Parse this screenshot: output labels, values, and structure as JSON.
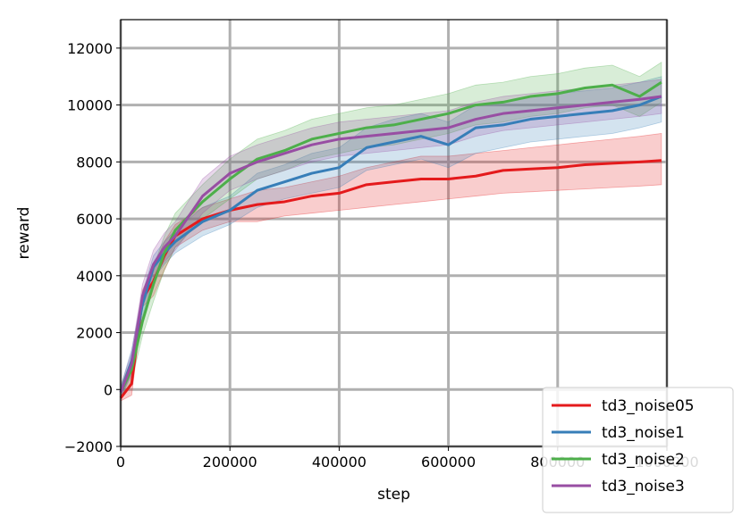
{
  "chart_data": {
    "type": "line",
    "title": "",
    "xlabel": "step",
    "ylabel": "reward",
    "xlim": [
      0,
      1000000
    ],
    "ylim": [
      -2000,
      13000
    ],
    "xticks": [
      0,
      200000,
      400000,
      600000,
      800000,
      1000000
    ],
    "xtick_labels": [
      "0",
      "200000",
      "400000",
      "600000",
      "800000",
      "1000000"
    ],
    "yticks": [
      -2000,
      0,
      2000,
      4000,
      6000,
      8000,
      10000,
      12000
    ],
    "ytick_labels": [
      "−2000",
      "0",
      "2000",
      "4000",
      "6000",
      "8000",
      "10000",
      "12000"
    ],
    "grid": true,
    "legend_position": "bottom-right",
    "x": [
      0,
      20000,
      40000,
      60000,
      80000,
      100000,
      150000,
      200000,
      250000,
      300000,
      350000,
      400000,
      450000,
      500000,
      550000,
      600000,
      650000,
      700000,
      750000,
      800000,
      850000,
      900000,
      950000,
      990000
    ],
    "series": [
      {
        "name": "td3_noise05",
        "color": "#e41a1c",
        "values": [
          -300,
          200,
          3200,
          3800,
          4700,
          5400,
          6000,
          6300,
          6500,
          6600,
          6800,
          6900,
          7200,
          7300,
          7400,
          7400,
          7500,
          7700,
          7750,
          7800,
          7900,
          7950,
          8000,
          8050
        ],
        "lower": [
          -400,
          -200,
          2900,
          3300,
          4200,
          5000,
          5600,
          5900,
          5900,
          6100,
          6200,
          6300,
          6400,
          6500,
          6600,
          6700,
          6800,
          6900,
          6950,
          7000,
          7050,
          7100,
          7150,
          7200
        ],
        "upper": [
          -200,
          600,
          3500,
          4300,
          5200,
          5800,
          6400,
          6700,
          7000,
          7100,
          7300,
          7500,
          7800,
          8000,
          8200,
          8200,
          8300,
          8400,
          8500,
          8600,
          8700,
          8800,
          8900,
          9000
        ]
      },
      {
        "name": "td3_noise1",
        "color": "#377eb8",
        "values": [
          -100,
          1000,
          3000,
          4300,
          4800,
          5200,
          5900,
          6300,
          7000,
          7300,
          7600,
          7800,
          8500,
          8700,
          8900,
          8600,
          9200,
          9300,
          9500,
          9600,
          9700,
          9800,
          10000,
          10300
        ],
        "lower": [
          -300,
          600,
          2600,
          3900,
          4400,
          4800,
          5400,
          5800,
          6400,
          6700,
          6900,
          7100,
          7700,
          7900,
          8100,
          7800,
          8300,
          8500,
          8700,
          8800,
          8900,
          9000,
          9200,
          9400
        ],
        "upper": [
          100,
          1400,
          3400,
          4700,
          5200,
          5600,
          6400,
          6800,
          7600,
          7900,
          8300,
          8500,
          9200,
          9500,
          9700,
          9400,
          10000,
          10100,
          10300,
          10400,
          10500,
          10600,
          10800,
          11000
        ]
      },
      {
        "name": "td3_noise2",
        "color": "#4daf4a",
        "values": [
          -100,
          700,
          2400,
          3700,
          4800,
          5600,
          6600,
          7400,
          8100,
          8400,
          8800,
          9000,
          9200,
          9300,
          9500,
          9700,
          10000,
          10100,
          10300,
          10400,
          10600,
          10700,
          10300,
          10800
        ],
        "lower": [
          -300,
          300,
          1900,
          3100,
          4200,
          5000,
          6000,
          6700,
          7400,
          7700,
          8100,
          8300,
          8500,
          8600,
          8800,
          9000,
          9300,
          9400,
          9600,
          9700,
          9900,
          10000,
          9600,
          10100
        ],
        "upper": [
          100,
          1100,
          2900,
          4300,
          5400,
          6200,
          7200,
          8100,
          8800,
          9100,
          9500,
          9700,
          9900,
          10000,
          10200,
          10400,
          10700,
          10800,
          11000,
          11100,
          11300,
          11400,
          11000,
          11500
        ]
      },
      {
        "name": "td3_noise3",
        "color": "#984ea3",
        "values": [
          -100,
          900,
          3300,
          4400,
          5000,
          5400,
          6800,
          7600,
          8000,
          8300,
          8600,
          8800,
          8900,
          9000,
          9100,
          9200,
          9500,
          9700,
          9800,
          9900,
          10000,
          10100,
          10200,
          10300
        ],
        "lower": [
          -300,
          500,
          2900,
          3900,
          4500,
          4900,
          6200,
          7000,
          7400,
          7700,
          8000,
          8200,
          8300,
          8400,
          8500,
          8600,
          8900,
          9100,
          9200,
          9300,
          9400,
          9500,
          9600,
          9700
        ],
        "upper": [
          100,
          1300,
          3700,
          4900,
          5500,
          5900,
          7400,
          8200,
          8600,
          8900,
          9200,
          9400,
          9500,
          9600,
          9700,
          9800,
          10100,
          10300,
          10400,
          10500,
          10600,
          10700,
          10800,
          10900
        ]
      }
    ]
  }
}
